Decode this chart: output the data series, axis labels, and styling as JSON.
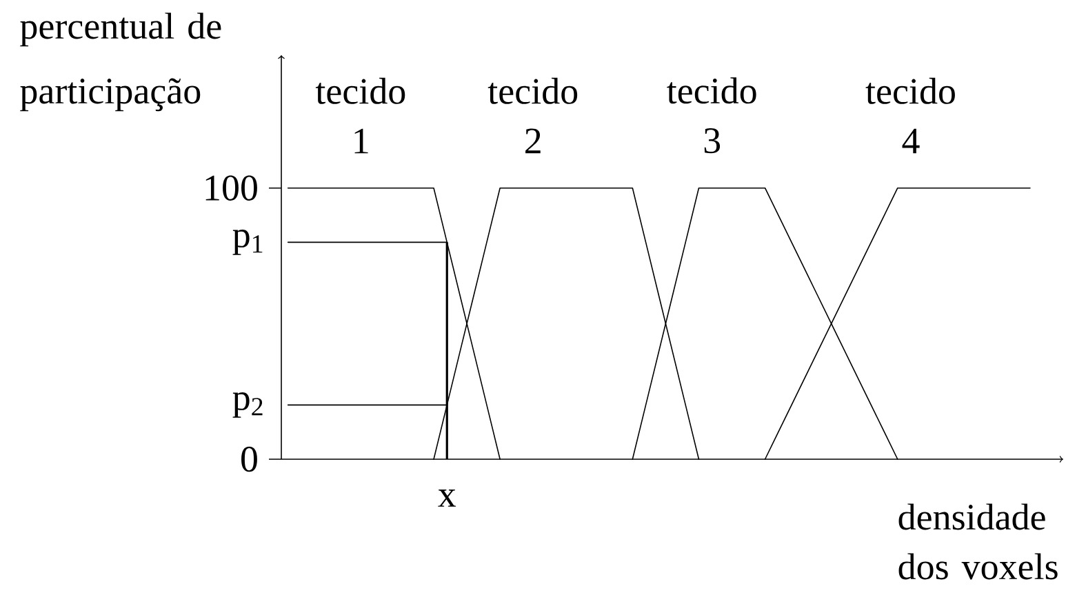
{
  "chart_data": {
    "type": "line",
    "xlabel": "densidade dos voxels",
    "ylabel": "percentual de participação",
    "categories": [
      null,
      null,
      null,
      null,
      null,
      null,
      null,
      null,
      null,
      null,
      null,
      null,
      "x",
      null,
      null,
      null,
      null,
      null,
      null,
      null,
      null,
      null,
      null,
      null,
      null,
      null,
      null,
      null,
      null,
      null,
      null,
      null,
      null,
      null,
      null,
      null,
      null,
      null,
      null,
      null,
      null,
      null,
      null,
      null,
      null,
      null,
      null,
      null,
      null,
      null,
      null,
      null,
      null,
      null,
      null,
      null,
      null,
      null,
      null
    ],
    "series": [
      {
        "name": "tecido 1",
        "color": "#000000",
        "values": [
          100,
          100,
          100,
          100,
          100,
          100,
          100,
          100,
          100,
          100,
          100,
          100,
          80,
          60,
          40,
          20,
          0,
          null,
          null,
          null,
          null,
          null,
          null,
          null,
          null,
          null,
          null,
          null,
          null,
          null,
          null,
          null,
          null,
          null,
          null,
          null,
          null,
          null,
          null,
          null,
          null,
          null,
          null,
          null,
          null,
          null,
          null,
          null,
          null,
          null,
          null,
          null,
          null,
          null,
          null,
          null,
          null,
          null,
          null
        ]
      },
      {
        "name": "tecido 2",
        "color": "#000000",
        "values": [
          null,
          null,
          null,
          null,
          null,
          null,
          null,
          null,
          null,
          null,
          null,
          0,
          20,
          40,
          60,
          80,
          100,
          100,
          100,
          100,
          100,
          100,
          100,
          100,
          100,
          100,
          100,
          80,
          60,
          40,
          20,
          0,
          null,
          null,
          null,
          null,
          null,
          null,
          null,
          null,
          null,
          null,
          null,
          null,
          null,
          null,
          null,
          null,
          null,
          null,
          null,
          null,
          null,
          null,
          null,
          null,
          null,
          null,
          null
        ]
      },
      {
        "name": "tecido 3",
        "color": "#000000",
        "values": [
          null,
          null,
          null,
          null,
          null,
          null,
          null,
          null,
          null,
          null,
          null,
          null,
          null,
          null,
          null,
          null,
          null,
          null,
          null,
          null,
          null,
          null,
          null,
          null,
          null,
          null,
          0,
          20,
          40,
          60,
          80,
          100,
          100,
          100,
          100,
          100,
          100,
          90,
          80,
          70,
          60,
          50,
          40,
          30,
          20,
          10,
          0,
          null,
          null,
          null,
          null,
          null,
          null,
          null,
          null,
          null,
          null,
          null,
          null
        ]
      },
      {
        "name": "tecido 4",
        "color": "#000000",
        "values": [
          null,
          null,
          null,
          null,
          null,
          null,
          null,
          null,
          null,
          null,
          null,
          null,
          null,
          null,
          null,
          null,
          null,
          null,
          null,
          null,
          null,
          null,
          null,
          null,
          null,
          null,
          null,
          null,
          null,
          null,
          null,
          null,
          null,
          null,
          null,
          null,
          0,
          10,
          20,
          30,
          40,
          50,
          60,
          70,
          80,
          90,
          100,
          100,
          100,
          100,
          100,
          100,
          100,
          100,
          100,
          100,
          100,
          null,
          null
        ]
      },
      {
        "color": "#000000",
        "values": [
          80,
          80,
          80,
          80,
          80,
          80,
          80,
          80,
          80,
          80,
          80,
          80,
          80,
          null,
          null,
          null,
          null,
          null,
          null,
          null,
          null,
          null,
          null,
          null,
          null,
          null,
          null,
          null,
          null,
          null,
          null,
          null,
          null,
          null,
          null,
          null,
          null,
          null,
          null,
          null,
          null,
          null,
          null,
          null,
          null,
          null,
          null,
          null,
          null,
          null,
          null,
          null,
          null,
          null,
          null,
          null,
          null,
          null,
          null
        ]
      },
      {
        "color": "#000000",
        "values": [
          20,
          20,
          20,
          20,
          20,
          20,
          20,
          20,
          20,
          20,
          20,
          20,
          20,
          null,
          null,
          null,
          null,
          null,
          null,
          null,
          null,
          null,
          null,
          null,
          null,
          null,
          null,
          null,
          null,
          null,
          null,
          null,
          null,
          null,
          null,
          null,
          null,
          null,
          null,
          null,
          null,
          null,
          null,
          null,
          null,
          null,
          null,
          null,
          null,
          null,
          null,
          null,
          null,
          null,
          null,
          null,
          null,
          null,
          null
        ]
      },
      {
        "type": "bar",
        "color": "#000000",
        "values": [
          null,
          null,
          null,
          null,
          null,
          null,
          null,
          null,
          null,
          null,
          null,
          null,
          80,
          null,
          null,
          null,
          null,
          null,
          null,
          null,
          null,
          null,
          null,
          null,
          null,
          null,
          null,
          null,
          null,
          null,
          null,
          null,
          null,
          null,
          null,
          null,
          null,
          null,
          null,
          null,
          null,
          null,
          null,
          null,
          null,
          null,
          null,
          null,
          null,
          null,
          null,
          null,
          null,
          null,
          null,
          null,
          null,
          null,
          null
        ]
      }
    ],
    "annotations": [
      "p$_{1}$",
      "p$_{2}$"
    ],
    "ylim": [
      0,
      149
    ],
    "yticks": [
      0,
      100
    ],
    "marker": "none",
    "line_style": "solid"
  }
}
